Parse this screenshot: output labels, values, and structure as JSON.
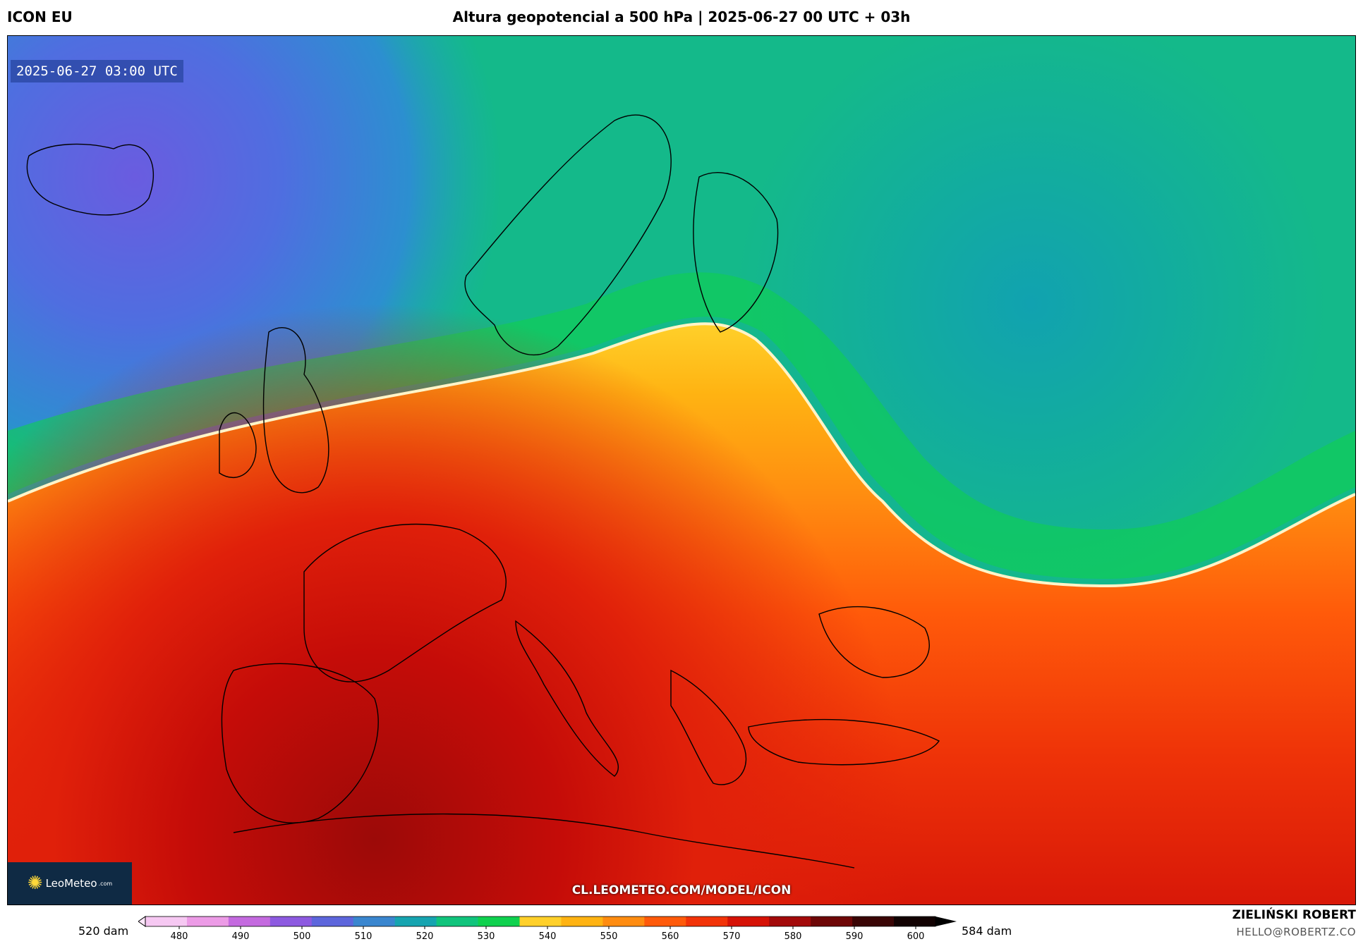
{
  "header": {
    "model": "ICON EU",
    "title": "Altura geopotencial a 500 hPa | 2025-06-27 00 UTC + 03h"
  },
  "map": {
    "valid_time": "2025-06-27 03:00 UTC",
    "watermark_url": "CL.LEOMETEO.COM/MODEL/ICON",
    "logo_text": "LeoMeteo",
    "logo_suffix": ".com"
  },
  "colorbar": {
    "left_label": "520 dam",
    "right_label": "584 dam",
    "ticks": [
      "480",
      "490",
      "500",
      "510",
      "520",
      "530",
      "540",
      "550",
      "560",
      "570",
      "580",
      "590",
      "600"
    ],
    "colors": [
      "#f6c8f2",
      "#ec9be6",
      "#c46adf",
      "#8d5ae0",
      "#5d66dc",
      "#3a86cf",
      "#16a4b0",
      "#11c47c",
      "#0fd14e",
      "#ffd02a",
      "#ffb312",
      "#ff8c10",
      "#ff5a0a",
      "#f23308",
      "#d61206",
      "#a30a0a",
      "#6e0707",
      "#3a0505",
      "#120202"
    ]
  },
  "footer": {
    "author": "ZIELIŃSKI ROBERT",
    "email": "HELLO@ROBERTZ.CO"
  }
}
